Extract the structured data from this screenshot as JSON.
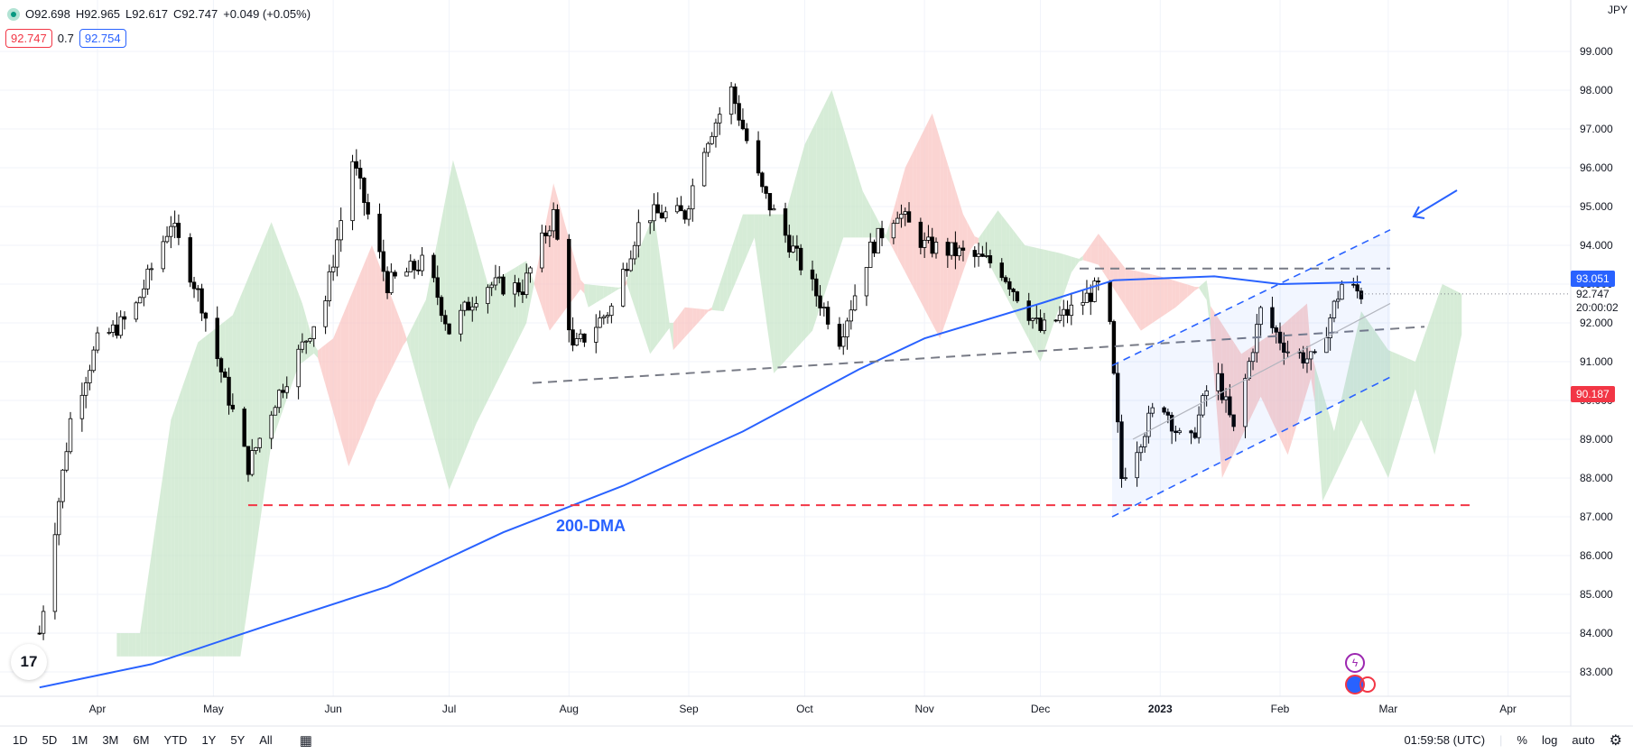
{
  "header": {
    "o": "O92.698",
    "h": "H92.965",
    "l": "L92.617",
    "c": "C92.747",
    "chg": "+0.049 (+0.05%)",
    "bid": "92.747",
    "spread": "0.7",
    "ask": "92.754"
  },
  "currency": "JPY",
  "price_labels": {
    "dma_label": "93.051",
    "last_price": "92.747",
    "countdown": "20:00:02",
    "cloud_label": "90.187"
  },
  "annotation": "200-DMA",
  "colors": {
    "up": "#ffffff",
    "down": "#000000",
    "dma": "#2962ff",
    "cloud_green": "#c8e6c9",
    "cloud_red": "#f9c5c3",
    "support": "#f23645",
    "channel": "#2962ff"
  },
  "bottom": {
    "ranges": [
      "1D",
      "5D",
      "1M",
      "3M",
      "6M",
      "YTD",
      "1Y",
      "5Y",
      "All"
    ],
    "clock": "01:59:58 (UTC)",
    "pct": "%",
    "log": "log",
    "auto": "auto"
  },
  "chart_data": {
    "type": "candlestick",
    "y_axis": {
      "ticks": [
        "83.000",
        "84.000",
        "85.000",
        "86.000",
        "87.000",
        "88.000",
        "89.000",
        "90.000",
        "91.000",
        "92.000",
        "93.000",
        "94.000",
        "95.000",
        "96.000",
        "97.000",
        "98.000",
        "99.000"
      ],
      "ylim": [
        82.5,
        99.5
      ]
    },
    "x_axis": {
      "ticks": [
        "Apr",
        "May",
        "Jun",
        "Jul",
        "Aug",
        "Sep",
        "Oct",
        "Nov",
        "Dec",
        "2023",
        "Feb",
        "Mar",
        "Apr"
      ]
    },
    "price_path": [
      [
        "Mar 17",
        84.0
      ],
      [
        "Mar 25",
        89.5
      ],
      [
        "Apr 1",
        91.5
      ],
      [
        "Apr 10",
        92.2
      ],
      [
        "Apr 20",
        94.6
      ],
      [
        "Apr 28",
        92.5
      ],
      [
        "May 10",
        88.3
      ],
      [
        "May 17",
        90.0
      ],
      [
        "May 30",
        92.6
      ],
      [
        "Jun 6",
        96.2
      ],
      [
        "Jun 15",
        93.0
      ],
      [
        "Jun 25",
        93.6
      ],
      [
        "Jul 1",
        91.8
      ],
      [
        "Jul 10",
        93.0
      ],
      [
        "Jul 20",
        92.9
      ],
      [
        "Jul 28",
        94.8
      ],
      [
        "Aug 2",
        91.3
      ],
      [
        "Aug 12",
        92.4
      ],
      [
        "Aug 20",
        94.8
      ],
      [
        "Aug 31",
        94.8
      ],
      [
        "Sep 5",
        96.6
      ],
      [
        "Sep 12",
        98.0
      ],
      [
        "Sep 20",
        95.4
      ],
      [
        "Sep 30",
        93.5
      ],
      [
        "Oct 10",
        91.6
      ],
      [
        "Oct 18",
        93.9
      ],
      [
        "Oct 25",
        94.9
      ],
      [
        "Nov 1",
        94.0
      ],
      [
        "Nov 10",
        93.8
      ],
      [
        "Nov 20",
        93.5
      ],
      [
        "Dec 1",
        91.8
      ],
      [
        "Dec 10",
        92.4
      ],
      [
        "Dec 18",
        93.1
      ],
      [
        "Dec 22",
        88.0
      ],
      [
        "Jan 1",
        90.1
      ],
      [
        "Jan 8",
        88.6
      ],
      [
        "Jan 15",
        90.9
      ],
      [
        "Jan 20",
        89.2
      ],
      [
        "Jan 27",
        92.3
      ],
      [
        "Feb 3",
        91.3
      ],
      [
        "Feb 10",
        91.0
      ],
      [
        "Feb 17",
        93.0
      ],
      [
        "Feb 22",
        92.75
      ]
    ],
    "series": [
      {
        "name": "200-DMA",
        "type": "line",
        "points": [
          [
            "Mar 17",
            82.6
          ],
          [
            "Apr 15",
            83.2
          ],
          [
            "May 15",
            84.2
          ],
          [
            "Jun 15",
            85.2
          ],
          [
            "Jul 15",
            86.6
          ],
          [
            "Aug 15",
            87.8
          ],
          [
            "Sep 15",
            89.2
          ],
          [
            "Oct 15",
            90.8
          ],
          [
            "Nov 1",
            91.6
          ],
          [
            "Dec 1",
            92.5
          ],
          [
            "Dec 20",
            93.1
          ],
          [
            "Jan 15",
            93.2
          ],
          [
            "Feb 1",
            93.0
          ],
          [
            "Feb 22",
            93.05
          ]
        ]
      }
    ],
    "annotations": {
      "support_line": 87.3,
      "resistance_line": 93.4
    },
    "last_price": 92.747
  }
}
